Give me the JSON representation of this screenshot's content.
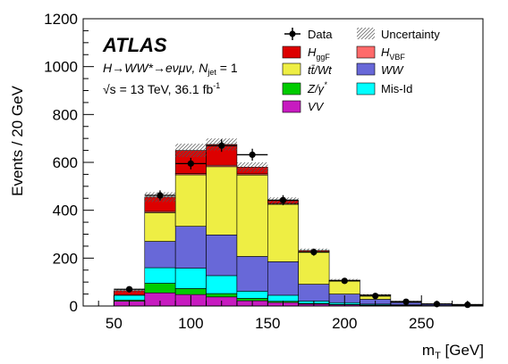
{
  "chart_data": {
    "type": "bar",
    "stacked": true,
    "x_label": "m",
    "x_label_sub": "T",
    "x_label_unit": " [GeV]",
    "y_label": "Events / 20 GeV",
    "xlim": [
      30,
      290
    ],
    "ylim": [
      0,
      1200
    ],
    "x_ticks": [
      "50",
      "100",
      "150",
      "200",
      "250"
    ],
    "y_ticks": [
      "0",
      "200",
      "400",
      "600",
      "800",
      "1000",
      "1200"
    ],
    "bin_edges": [
      50,
      70,
      90,
      110,
      130,
      150,
      170,
      190,
      210,
      230,
      250,
      270,
      290
    ],
    "series": [
      {
        "name": "VV",
        "color": "#c71bc0",
        "values": [
          20,
          55,
          48,
          38,
          22,
          15,
          8,
          5,
          3,
          2,
          1,
          1
        ]
      },
      {
        "name": "Z/γ*",
        "color": "#00cc00",
        "values": [
          5,
          40,
          25,
          14,
          10,
          5,
          3,
          2,
          1,
          1,
          0,
          0
        ]
      },
      {
        "name": "Mis-Id",
        "color": "#00ffff",
        "values": [
          20,
          65,
          85,
          75,
          30,
          25,
          10,
          7,
          4,
          2,
          1,
          1
        ]
      },
      {
        "name": "WW",
        "color": "#6868d8",
        "values": [
          0,
          110,
          175,
          170,
          145,
          140,
          70,
          36,
          20,
          10,
          6,
          4
        ]
      },
      {
        "name": "tt̄/Wt",
        "color": "#eeee44",
        "values": [
          0,
          120,
          215,
          285,
          340,
          240,
          134,
          55,
          18,
          5,
          2,
          1
        ]
      },
      {
        "name": "H_VBF",
        "color": "#ff6a6a",
        "values": [
          1,
          5,
          5,
          6,
          5,
          3,
          2,
          1,
          0,
          0,
          0,
          0
        ]
      },
      {
        "name": "H_ggF",
        "color": "#dd0000",
        "values": [
          18,
          60,
          97,
          87,
          28,
          12,
          5,
          2,
          1,
          0,
          0,
          0
        ]
      }
    ],
    "uncertainty": [
      8,
      20,
      28,
      25,
      20,
      14,
      8,
      5,
      3,
      2,
      1,
      1
    ],
    "data": {
      "x": [
        60,
        80,
        100,
        120,
        140,
        160,
        180,
        200,
        220,
        240,
        260,
        280
      ],
      "y": [
        70,
        462,
        595,
        670,
        632,
        442,
        225,
        105,
        42,
        18,
        8,
        5
      ],
      "err": [
        8,
        21,
        24,
        26,
        25,
        21,
        15,
        10,
        6,
        4,
        3,
        2
      ]
    },
    "legend": {
      "data": "Data",
      "uncertainty": "Uncertainty",
      "hggf_main": "H",
      "hggf_sub": "ggF",
      "ttwt": "tt̄/Wt",
      "zgamma": "Z/γ",
      "zgamma_sup": "*",
      "vv": "VV",
      "hvbf_main": "H",
      "hvbf_sub": "VBF",
      "ww": "WW",
      "misid": "Mis-Id"
    },
    "annotation": {
      "experiment": "ATLAS",
      "process": "H→WW*→eνμν, N",
      "process_sub": "jet",
      "process_tail": " = 1",
      "energy": "√s = 13 TeV, 36.1 fb",
      "energy_sup": "-1"
    }
  }
}
